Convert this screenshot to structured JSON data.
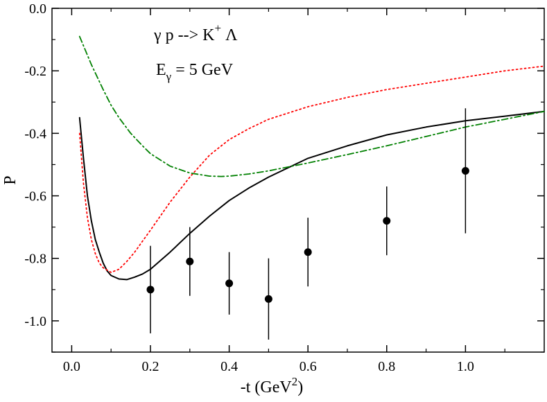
{
  "chart_data": {
    "type": "line",
    "title": "",
    "xlabel": "-t (GeV",
    "xlabel_sup": "2",
    "xlabel_end": ")",
    "ylabel": "P",
    "xlim": [
      -0.05,
      1.2
    ],
    "ylim": [
      -1.1,
      0.0
    ],
    "x_ticks": [
      0.0,
      0.2,
      0.4,
      0.6,
      0.8,
      1.0
    ],
    "x_tick_labels": [
      "0.0",
      "0.2",
      "0.4",
      "0.6",
      "0.8",
      "1.0"
    ],
    "y_ticks": [
      0.0,
      -0.2,
      -0.4,
      -0.6,
      -0.8,
      -1.0
    ],
    "y_tick_labels": [
      "0.0",
      "-0.2",
      "-0.4",
      "-0.6",
      "-0.8",
      "-1.0"
    ],
    "annotations": {
      "reaction_gamma": "γ",
      "reaction_rest": " p --> K",
      "reaction_sup": "+",
      "reaction_end": " Λ",
      "energy_E": "E",
      "energy_sub": "γ",
      "energy_rest": " = 5 GeV"
    },
    "series": [
      {
        "name": "solid",
        "color": "#000000",
        "style": "solid",
        "x": [
          0.02,
          0.03,
          0.04,
          0.05,
          0.06,
          0.07,
          0.08,
          0.09,
          0.1,
          0.12,
          0.14,
          0.16,
          0.18,
          0.2,
          0.25,
          0.3,
          0.35,
          0.4,
          0.45,
          0.5,
          0.6,
          0.7,
          0.8,
          0.9,
          1.0,
          1.1,
          1.2
        ],
        "y": [
          -0.35,
          -0.48,
          -0.6,
          -0.68,
          -0.74,
          -0.78,
          -0.815,
          -0.84,
          -0.855,
          -0.866,
          -0.868,
          -0.86,
          -0.85,
          -0.835,
          -0.78,
          -0.72,
          -0.665,
          -0.615,
          -0.575,
          -0.54,
          -0.48,
          -0.44,
          -0.405,
          -0.38,
          -0.36,
          -0.345,
          -0.33
        ]
      },
      {
        "name": "dotted",
        "color": "#ff0000",
        "style": "dotted",
        "x": [
          0.02,
          0.03,
          0.04,
          0.05,
          0.06,
          0.07,
          0.08,
          0.1,
          0.12,
          0.14,
          0.16,
          0.18,
          0.2,
          0.25,
          0.3,
          0.35,
          0.4,
          0.45,
          0.5,
          0.6,
          0.7,
          0.8,
          0.9,
          1.0,
          1.1,
          1.2
        ],
        "y": [
          -0.4,
          -0.56,
          -0.67,
          -0.74,
          -0.785,
          -0.815,
          -0.83,
          -0.845,
          -0.835,
          -0.81,
          -0.78,
          -0.745,
          -0.71,
          -0.62,
          -0.54,
          -0.47,
          -0.42,
          -0.385,
          -0.355,
          -0.315,
          -0.285,
          -0.26,
          -0.24,
          -0.22,
          -0.2,
          -0.185
        ]
      },
      {
        "name": "dash-dot",
        "color": "#008000",
        "style": "dashdot",
        "x": [
          0.02,
          0.05,
          0.08,
          0.1,
          0.12,
          0.15,
          0.18,
          0.2,
          0.25,
          0.3,
          0.35,
          0.38,
          0.4,
          0.45,
          0.5,
          0.6,
          0.7,
          0.8,
          0.9,
          1.0,
          1.1,
          1.2
        ],
        "y": [
          -0.09,
          -0.18,
          -0.26,
          -0.31,
          -0.35,
          -0.4,
          -0.44,
          -0.465,
          -0.505,
          -0.527,
          -0.537,
          -0.538,
          -0.537,
          -0.53,
          -0.52,
          -0.495,
          -0.468,
          -0.44,
          -0.41,
          -0.38,
          -0.355,
          -0.33
        ]
      }
    ],
    "points": {
      "name": "data",
      "color": "#000000",
      "x": [
        0.2,
        0.3,
        0.4,
        0.5,
        0.6,
        0.8,
        1.0
      ],
      "y": [
        -0.9,
        -0.81,
        -0.88,
        -0.93,
        -0.78,
        -0.68,
        -0.52
      ],
      "err": [
        0.14,
        0.11,
        0.1,
        0.13,
        0.11,
        0.11,
        0.2
      ]
    }
  }
}
